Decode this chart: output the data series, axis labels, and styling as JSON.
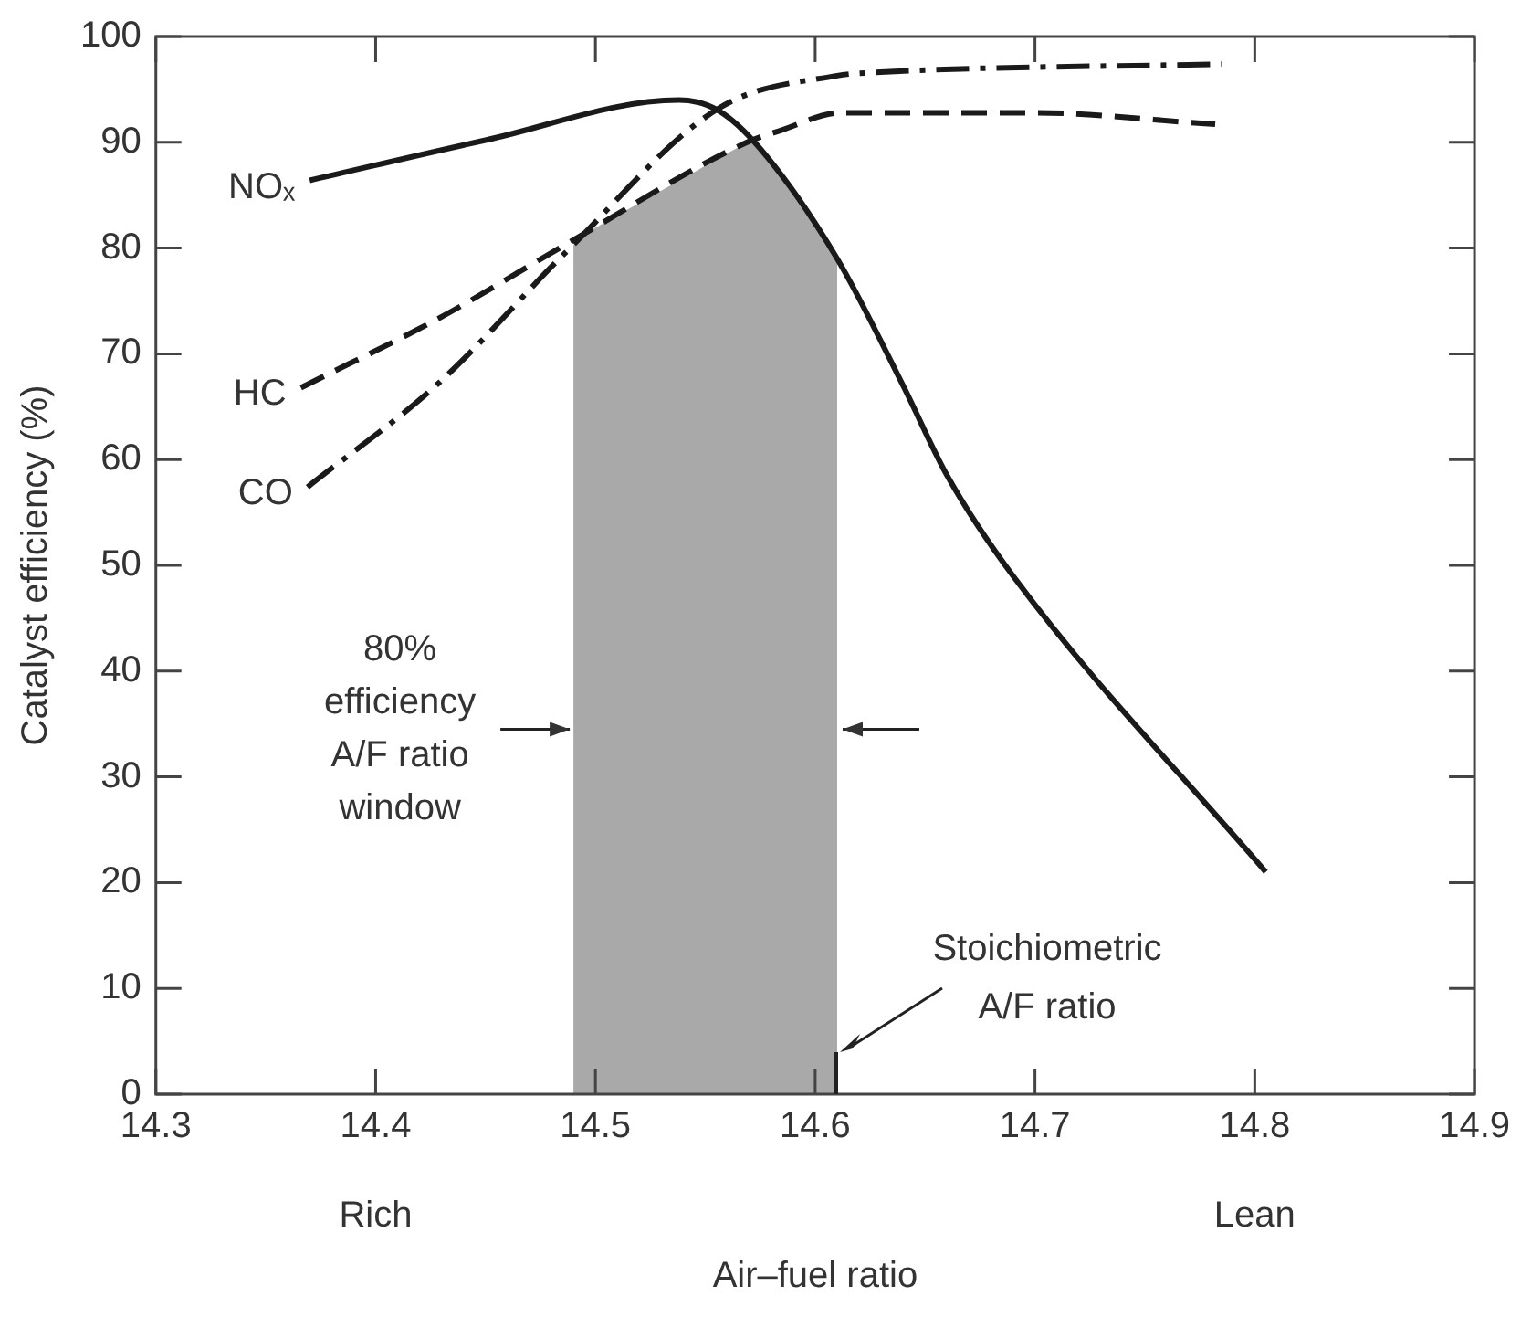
{
  "chart_data": {
    "type": "line",
    "xlabel": "Air–fuel ratio",
    "ylabel": "Catalyst efficiency (%)",
    "xlim": [
      14.3,
      14.9
    ],
    "xticks": [
      {
        "value": 14.3,
        "label": "14.3"
      },
      {
        "value": 14.4,
        "label": "14.4"
      },
      {
        "value": 14.5,
        "label": "14.5"
      },
      {
        "value": 14.6,
        "label": "14.6"
      },
      {
        "value": 14.7,
        "label": "14.7"
      },
      {
        "value": 14.8,
        "label": "14.8"
      },
      {
        "value": 14.9,
        "label": "14.9"
      }
    ],
    "ylim": [
      0,
      100
    ],
    "yticks": [
      0,
      10,
      20,
      30,
      40,
      50,
      60,
      70,
      80,
      90,
      100
    ],
    "series": [
      {
        "name": "NOₓ",
        "color": "#1a1a1a",
        "line_style": "solid",
        "x": [
          14.37,
          14.45,
          14.538,
          14.556,
          14.575,
          14.61,
          14.64,
          14.66,
          14.69,
          14.805
        ],
        "values": [
          86.4,
          90.2,
          94,
          93,
          89.4,
          79,
          67,
          58.5,
          49,
          21
        ]
      },
      {
        "name": "HC",
        "color": "#1a1a1a",
        "line_style": "dashed",
        "x": [
          14.366,
          14.43,
          14.487,
          14.569,
          14.584,
          14.612,
          14.698,
          14.782
        ],
        "values": [
          66.8,
          73.5,
          80.4,
          90,
          91.1,
          92.8,
          92.8,
          91.7
        ]
      },
      {
        "name": "CO",
        "color": "#1a1a1a",
        "line_style": "dashdot",
        "x": [
          14.369,
          14.429,
          14.487,
          14.556,
          14.61,
          14.627,
          14.785
        ],
        "values": [
          57.4,
          67.3,
          79.7,
          93.2,
          96.3,
          96.6,
          97.4
        ]
      }
    ],
    "bands": [
      {
        "axis": "x",
        "from": 14.49,
        "to": 14.61,
        "label": "80% efficiency A/F ratio window",
        "color": "#a9a9a9"
      }
    ],
    "annotations": [
      "Rich",
      "Lean",
      {
        "text": "Stoichiometric A/F ratio",
        "x": 14.61,
        "y": 4
      }
    ]
  }
}
